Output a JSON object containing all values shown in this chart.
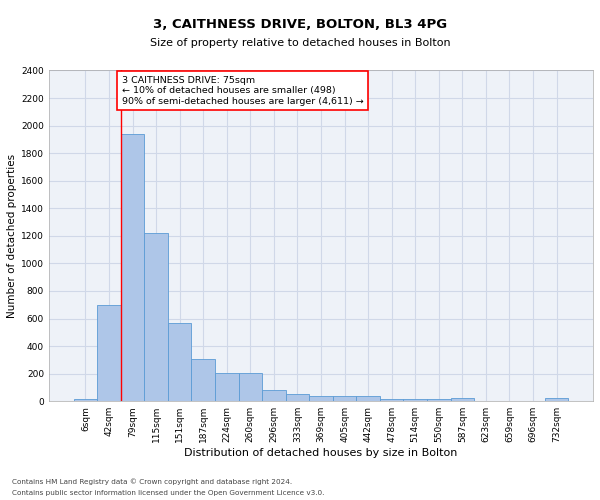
{
  "title1": "3, CAITHNESS DRIVE, BOLTON, BL3 4PG",
  "title2": "Size of property relative to detached houses in Bolton",
  "xlabel": "Distribution of detached houses by size in Bolton",
  "ylabel": "Number of detached properties",
  "footnote1": "Contains HM Land Registry data © Crown copyright and database right 2024.",
  "footnote2": "Contains public sector information licensed under the Open Government Licence v3.0.",
  "bar_labels": [
    "6sqm",
    "42sqm",
    "79sqm",
    "115sqm",
    "151sqm",
    "187sqm",
    "224sqm",
    "260sqm",
    "296sqm",
    "333sqm",
    "369sqm",
    "405sqm",
    "442sqm",
    "478sqm",
    "514sqm",
    "550sqm",
    "587sqm",
    "623sqm",
    "659sqm",
    "696sqm",
    "732sqm"
  ],
  "bar_heights": [
    20,
    700,
    1940,
    1220,
    570,
    305,
    205,
    205,
    80,
    50,
    40,
    40,
    35,
    20,
    20,
    20,
    25,
    5,
    5,
    5,
    25
  ],
  "bar_color": "#aec6e8",
  "bar_edge_color": "#5b9bd5",
  "grid_color": "#d0d8e8",
  "background_color": "#eef2f8",
  "annotation_line1": "3 CAITHNESS DRIVE: 75sqm",
  "annotation_line2": "← 10% of detached houses are smaller (498)",
  "annotation_line3": "90% of semi-detached houses are larger (4,611) →",
  "vline_x_index": 2,
  "ylim": [
    0,
    2400
  ],
  "yticks": [
    0,
    200,
    400,
    600,
    800,
    1000,
    1200,
    1400,
    1600,
    1800,
    2000,
    2200,
    2400
  ],
  "title1_fontsize": 9.5,
  "title2_fontsize": 8.0,
  "ylabel_fontsize": 7.5,
  "xlabel_fontsize": 8.0,
  "tick_fontsize": 6.5,
  "footnote_fontsize": 5.2
}
